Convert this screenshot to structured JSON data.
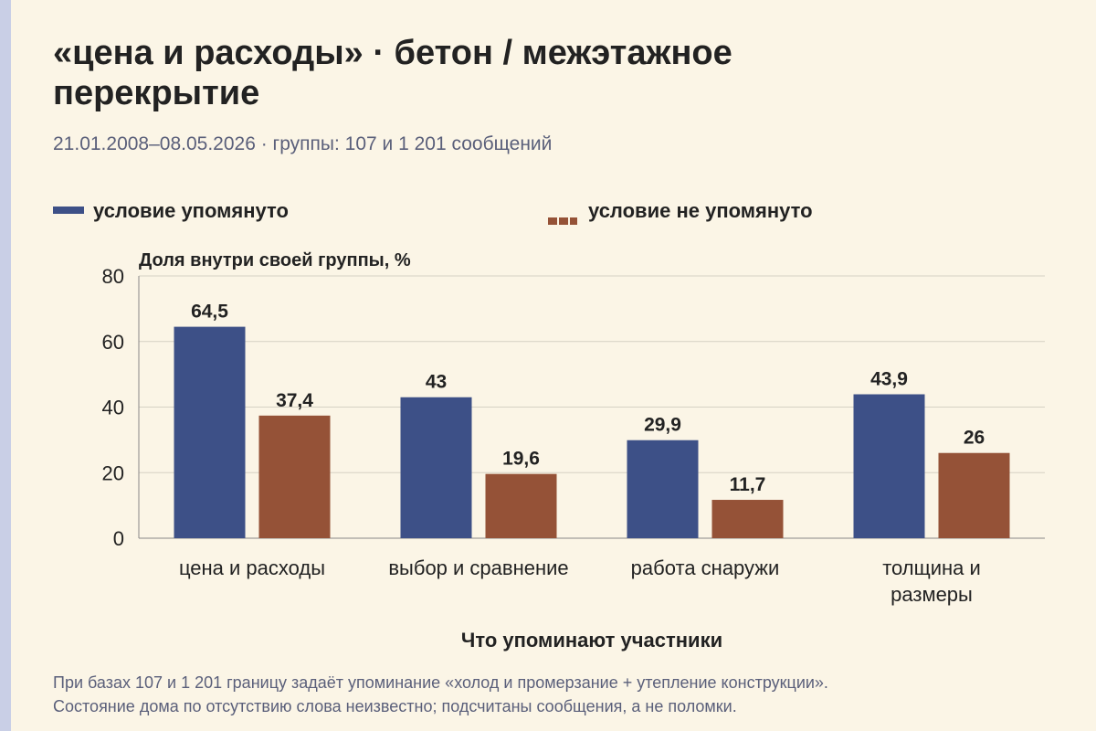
{
  "header": {
    "title": "«цена и расходы» · бетон / межэтажное перекрытие",
    "subtitle": "21.01.2008–08.05.2026 · группы: 107 и 1 201 сообщений"
  },
  "legend": {
    "items": [
      {
        "label": "условие упомянуто",
        "color": "#3d5087"
      },
      {
        "label": "условие не упомянуто",
        "color": "#955237"
      }
    ]
  },
  "footnote": {
    "line1": "При базах 107 и 1 201 границу задаёт упоминание «холод и промерзание + утепление конструкции».",
    "line2": "Состояние дома по отсутствию слова неизвестно; подсчитаны сообщения, а не поломки."
  },
  "chart_data": {
    "type": "bar",
    "ylabel": "Доля внутри своей группы, %",
    "xlabel": "Что упоминают участники",
    "ylim": [
      0,
      80
    ],
    "yticks": [
      "0",
      "20",
      "40",
      "60",
      "80"
    ],
    "grid": true,
    "legend_position": "top",
    "categories": [
      [
        "цена и расходы"
      ],
      [
        "выбор и сравнение"
      ],
      [
        "работа снаружи"
      ],
      [
        "толщина и",
        "размеры"
      ]
    ],
    "series": [
      {
        "name": "условие упомянуто",
        "color": "#3d5087",
        "values": [
          64.5,
          43,
          29.9,
          43.9
        ],
        "labels": [
          "64,5",
          "43",
          "29,9",
          "43,9"
        ]
      },
      {
        "name": "условие не упомянуто",
        "color": "#955237",
        "values": [
          37.4,
          19.6,
          11.7,
          26
        ],
        "labels": [
          "37,4",
          "19,6",
          "11,7",
          "26"
        ]
      }
    ]
  }
}
